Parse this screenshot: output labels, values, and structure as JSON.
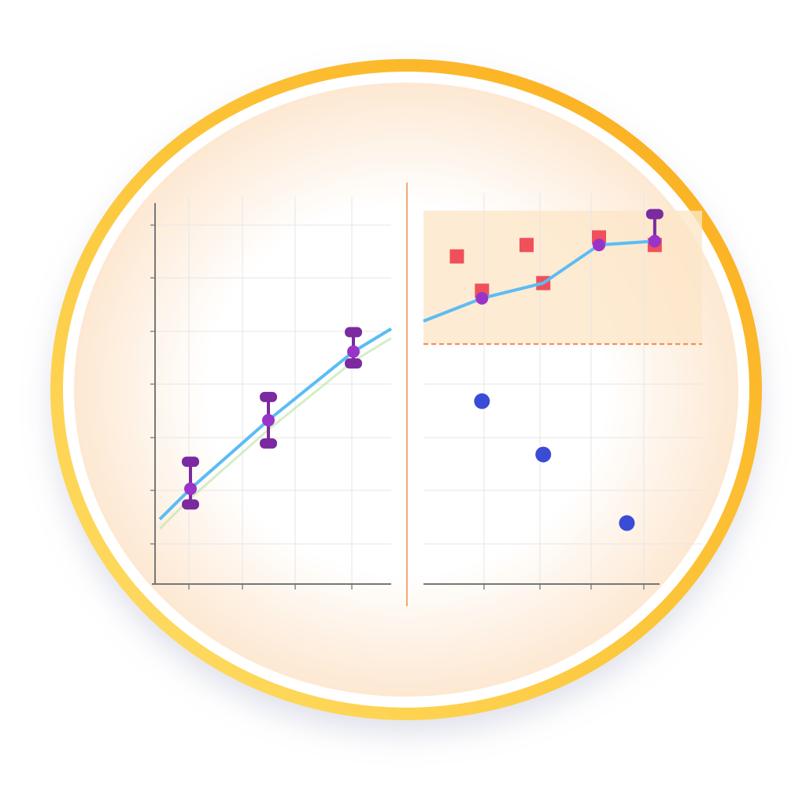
{
  "colors": {
    "ring": "#fbb829",
    "ring_light": "#ffe06a",
    "background": "#fdf2e6",
    "line": "#5bbcf5",
    "trend": "#b9e3a0",
    "error_bar": "#7b2aa0",
    "point": "#9a34c8",
    "square": "#f0505a",
    "scatter": "#3a4cd6",
    "divider": "#f08a4b",
    "band": "#fde6c8"
  },
  "chart_data": [
    {
      "type": "line",
      "title": "",
      "xlabel": "",
      "ylabel": "",
      "xlim": [
        0,
        10
      ],
      "ylim": [
        0,
        10
      ],
      "grid": true,
      "line": {
        "x": [
          0.2,
          1.5,
          4.8,
          8.4,
          10
        ],
        "y": [
          1.7,
          2.5,
          4.3,
          6.1,
          6.7
        ]
      },
      "points_with_error": [
        {
          "x": 1.5,
          "y": 2.5,
          "low": 2.1,
          "high": 3.2
        },
        {
          "x": 4.8,
          "y": 4.3,
          "low": 3.7,
          "high": 4.9
        },
        {
          "x": 8.4,
          "y": 6.1,
          "low": 5.8,
          "high": 6.6
        }
      ]
    },
    {
      "type": "scatter",
      "title": "",
      "xlabel": "",
      "ylabel": "",
      "xlim": [
        0,
        10
      ],
      "ylim": [
        0,
        10
      ],
      "grid": true,
      "band": {
        "low": 6.3,
        "high": 9.8
      },
      "threshold": 6.3,
      "line": {
        "x": [
          0,
          2.1,
          4.3,
          6.3,
          8.3
        ],
        "y": [
          6.9,
          7.5,
          7.9,
          8.9,
          9.0
        ]
      },
      "squares": [
        {
          "x": 1.2,
          "y": 8.6
        },
        {
          "x": 3.7,
          "y": 8.9
        },
        {
          "x": 2.1,
          "y": 7.7
        },
        {
          "x": 4.3,
          "y": 7.9
        },
        {
          "x": 6.3,
          "y": 9.1
        },
        {
          "x": 8.3,
          "y": 8.9
        }
      ],
      "points": [
        {
          "x": 2.1,
          "y": 7.5
        },
        {
          "x": 6.3,
          "y": 8.9
        },
        {
          "x": 8.3,
          "y": 9.0,
          "high": 9.7
        }
      ],
      "scatter": [
        {
          "x": 2.1,
          "y": 4.8
        },
        {
          "x": 4.3,
          "y": 3.4
        },
        {
          "x": 7.3,
          "y": 1.6
        }
      ]
    }
  ]
}
